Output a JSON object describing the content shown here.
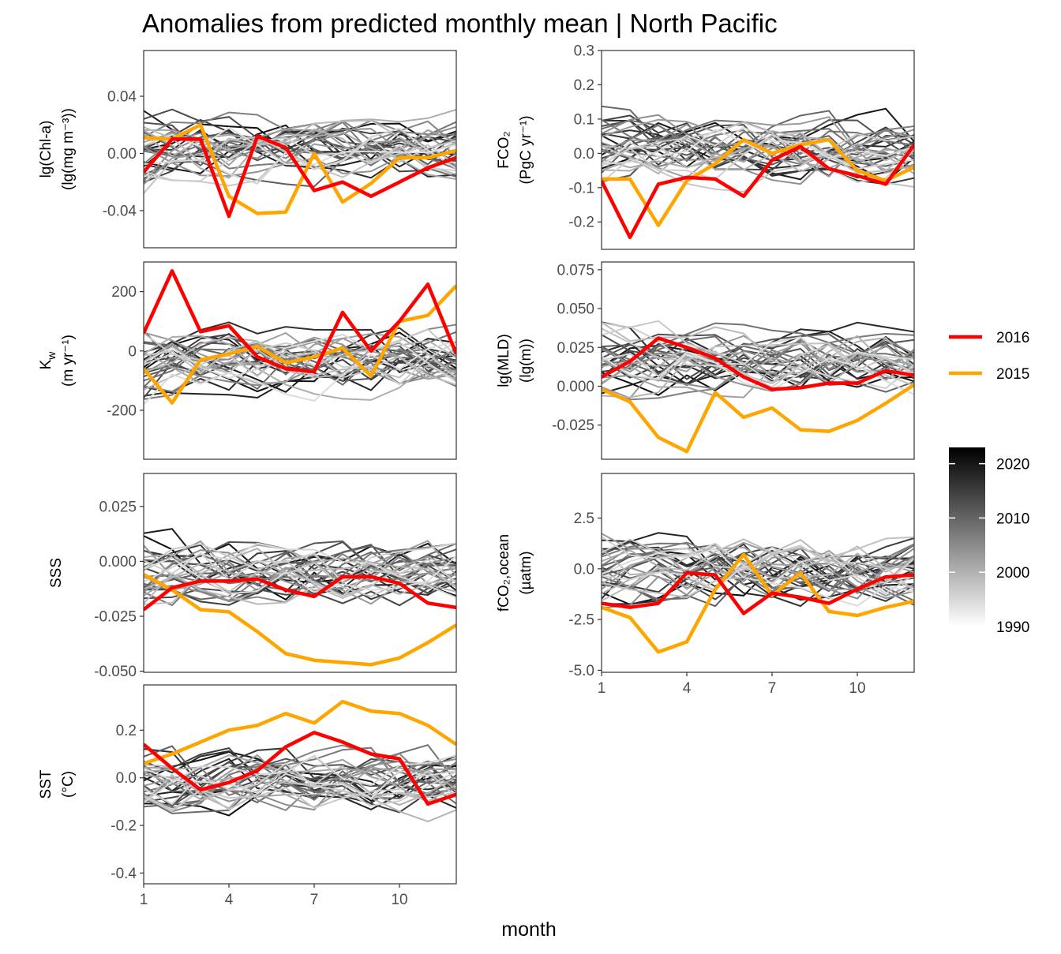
{
  "title": "Anomalies from predicted monthly mean | North Pacific",
  "xlabel": "month",
  "x_ticks": [
    1,
    4,
    7,
    10
  ],
  "legend_years": {
    "items": [
      {
        "label": "2016",
        "color": "#ff0000"
      },
      {
        "label": "2015",
        "color": "#ffa500"
      }
    ]
  },
  "colorbar": {
    "ticks": [
      2020,
      2010,
      2000,
      1990
    ],
    "range": [
      1990,
      2023
    ],
    "colors": {
      "low": "#ffffff",
      "high": "#000000"
    }
  },
  "chart_data": [
    {
      "type": "line",
      "panel": "chl",
      "ylabel": "lg(Chl-a)|(lg(mg m⁻³))",
      "ylim": [
        -0.066,
        0.072
      ],
      "yticks": [
        "0.04",
        "0.00",
        "-0.04"
      ],
      "x": [
        1,
        2,
        3,
        4,
        5,
        6,
        7,
        8,
        9,
        10,
        11,
        12
      ],
      "series": [
        {
          "name": "2016",
          "values": [
            -0.013,
            0.01,
            0.01,
            -0.044,
            0.012,
            0.004,
            -0.026,
            -0.02,
            -0.03,
            -0.02,
            -0.01,
            -0.003
          ]
        },
        {
          "name": "2015",
          "values": [
            0.011,
            0.01,
            0.02,
            -0.03,
            -0.042,
            -0.041,
            0.0,
            -0.034,
            -0.021,
            -0.003,
            -0.003,
            0.002
          ]
        }
      ]
    },
    {
      "type": "line",
      "panel": "fco2",
      "ylabel": "FCO₂|(PgC yr⁻¹)",
      "ylim": [
        -0.28,
        0.3
      ],
      "yticks": [
        "0.3",
        "0.2",
        "0.1",
        "0.0",
        "-0.1",
        "-0.2"
      ],
      "x": [
        1,
        2,
        3,
        4,
        5,
        6,
        7,
        8,
        9,
        10,
        11,
        12
      ],
      "series": [
        {
          "name": "2016",
          "values": [
            -0.08,
            -0.245,
            -0.09,
            -0.07,
            -0.075,
            -0.125,
            -0.02,
            0.02,
            -0.045,
            -0.065,
            -0.09,
            0.025
          ]
        },
        {
          "name": "2015",
          "values": [
            -0.075,
            -0.075,
            -0.21,
            -0.08,
            -0.03,
            0.04,
            0.0,
            0.025,
            0.04,
            -0.05,
            -0.08,
            -0.04
          ]
        }
      ]
    },
    {
      "type": "line",
      "panel": "kw",
      "ylabel": "K_w|(m yr⁻¹)",
      "ylim": [
        -365,
        300
      ],
      "yticks": [
        "200",
        "0",
        "-200"
      ],
      "x": [
        1,
        2,
        3,
        4,
        5,
        6,
        7,
        8,
        9,
        10,
        11,
        12
      ],
      "series": [
        {
          "name": "2016",
          "values": [
            60,
            270,
            65,
            85,
            -20,
            -60,
            -70,
            130,
            0,
            100,
            225,
            -10
          ]
        },
        {
          "name": "2015",
          "values": [
            -60,
            -175,
            -30,
            -10,
            15,
            -40,
            -20,
            10,
            -85,
            100,
            120,
            220
          ]
        }
      ]
    },
    {
      "type": "line",
      "panel": "mld",
      "ylabel": "lg(MLD)|(lg(m))",
      "ylim": [
        -0.047,
        0.08
      ],
      "yticks": [
        "0.075",
        "0.050",
        "0.025",
        "0.000",
        "-0.025"
      ],
      "x": [
        1,
        2,
        3,
        4,
        5,
        6,
        7,
        8,
        9,
        10,
        11,
        12
      ],
      "series": [
        {
          "name": "2016",
          "values": [
            0.006,
            0.016,
            0.031,
            0.025,
            0.018,
            0.006,
            -0.002,
            -0.001,
            0.002,
            0.002,
            0.01,
            0.007
          ]
        },
        {
          "name": "2015",
          "values": [
            -0.002,
            -0.01,
            -0.033,
            -0.042,
            -0.004,
            -0.02,
            -0.014,
            -0.028,
            -0.029,
            -0.022,
            -0.011,
            0.001
          ]
        }
      ]
    },
    {
      "type": "line",
      "panel": "sss",
      "ylabel": "SSS",
      "ylim": [
        -0.0505,
        0.04
      ],
      "yticks": [
        "0.025",
        "0.000",
        "-0.025",
        "-0.050"
      ],
      "x": [
        1,
        2,
        3,
        4,
        5,
        6,
        7,
        8,
        9,
        10,
        11,
        12
      ],
      "series": [
        {
          "name": "2016",
          "values": [
            -0.022,
            -0.012,
            -0.009,
            -0.009,
            -0.008,
            -0.013,
            -0.016,
            -0.007,
            -0.007,
            -0.01,
            -0.019,
            -0.021
          ]
        },
        {
          "name": "2015",
          "values": [
            -0.006,
            -0.013,
            -0.022,
            -0.023,
            -0.032,
            -0.042,
            -0.045,
            -0.046,
            -0.047,
            -0.044,
            -0.037,
            -0.029
          ]
        }
      ]
    },
    {
      "type": "line",
      "panel": "fco2ocean",
      "ylabel": "fCO₂,ocean|(µatm)",
      "ylim": [
        -5.1,
        4.7
      ],
      "yticks": [
        "2.5",
        "0.0",
        "-2.5",
        "-5.0"
      ],
      "x": [
        1,
        2,
        3,
        4,
        5,
        6,
        7,
        8,
        9,
        10,
        11,
        12
      ],
      "series": [
        {
          "name": "2016",
          "values": [
            -1.7,
            -1.9,
            -1.7,
            -0.2,
            -0.3,
            -2.2,
            -1.2,
            -1.4,
            -1.7,
            -1.0,
            -0.4,
            -0.3
          ]
        },
        {
          "name": "2015",
          "values": [
            -1.9,
            -2.4,
            -4.1,
            -3.6,
            -1.0,
            0.7,
            -1.3,
            -0.2,
            -2.1,
            -2.3,
            -1.9,
            -1.6
          ]
        }
      ]
    },
    {
      "type": "line",
      "panel": "sst",
      "ylabel": "SST|(°C)",
      "ylim": [
        -0.445,
        0.39
      ],
      "yticks": [
        "0.2",
        "0.0",
        "-0.2",
        "-0.4"
      ],
      "x": [
        1,
        2,
        3,
        4,
        5,
        6,
        7,
        8,
        9,
        10,
        11,
        12
      ],
      "series": [
        {
          "name": "2016",
          "values": [
            0.14,
            0.04,
            -0.05,
            -0.02,
            0.03,
            0.13,
            0.19,
            0.15,
            0.1,
            0.08,
            -0.11,
            -0.07
          ]
        },
        {
          "name": "2015",
          "values": [
            0.06,
            0.1,
            0.15,
            0.2,
            0.22,
            0.27,
            0.23,
            0.32,
            0.28,
            0.27,
            0.22,
            0.14
          ]
        }
      ]
    }
  ]
}
